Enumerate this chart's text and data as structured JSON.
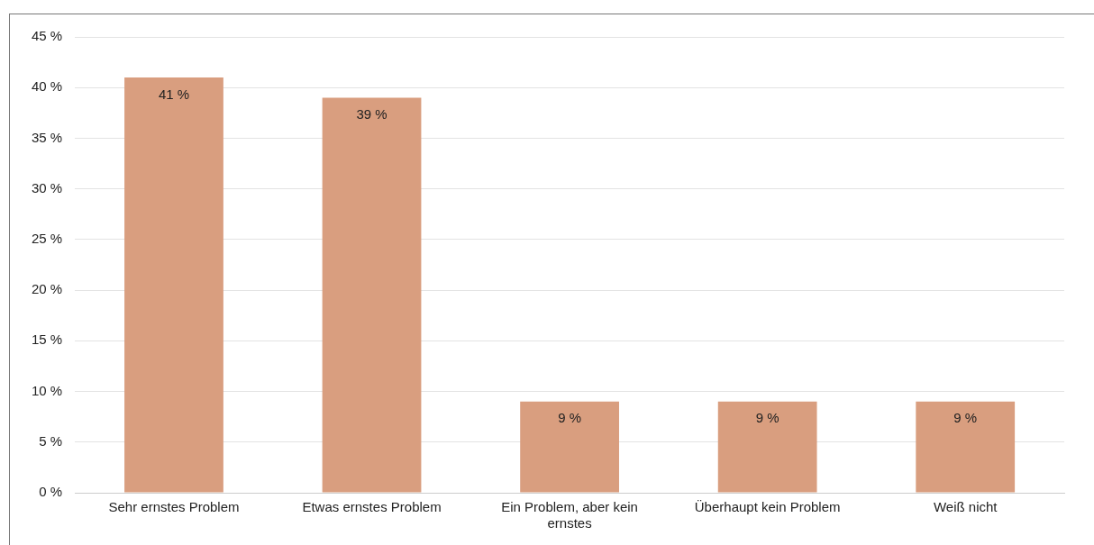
{
  "chart_data": {
    "type": "bar",
    "categories": [
      "Sehr ernstes Problem",
      "Etwas ernstes Problem",
      "Ein Problem, aber kein ernstes",
      "Überhaupt kein Problem",
      "Weiß nicht"
    ],
    "values": [
      41,
      39,
      9,
      9,
      9
    ],
    "value_labels": [
      "41 %",
      "39 %",
      "9 %",
      "9 %",
      "9 %"
    ],
    "color": "#d99e7f",
    "ylim": [
      0,
      45
    ],
    "yticks": [
      {
        "value": 0,
        "label": "0 %"
      },
      {
        "value": 5,
        "label": "5 %"
      },
      {
        "value": 10,
        "label": "10 %"
      },
      {
        "value": 15,
        "label": "15 %"
      },
      {
        "value": 20,
        "label": "20 %"
      },
      {
        "value": 25,
        "label": "25 %"
      },
      {
        "value": 30,
        "label": "30 %"
      },
      {
        "value": 35,
        "label": "35 %"
      },
      {
        "value": 40,
        "label": "40 %"
      },
      {
        "value": 45,
        "label": "45 %"
      }
    ],
    "grid": "y",
    "legend": false
  }
}
